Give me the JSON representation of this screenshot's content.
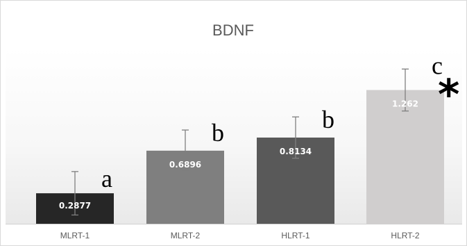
{
  "chart_data": {
    "type": "bar",
    "title": "BDNF",
    "xlabel": "",
    "ylabel": "",
    "ylim": [
      0,
      1.6
    ],
    "grid": false,
    "categories": [
      "MLRT-1",
      "MLRT-2",
      "HLRT-1",
      "HLRT-2"
    ],
    "values": [
      0.2877,
      0.6896,
      0.8134,
      1.262
    ],
    "value_labels": [
      "0.2877",
      "0.6896",
      "0.8134",
      "1.262"
    ],
    "error": [
      0.205,
      0.195,
      0.195,
      0.198
    ],
    "significance_letters": [
      "a",
      "b",
      "b",
      "c"
    ],
    "significance_star": [
      "",
      "",
      "",
      "*"
    ],
    "colors": [
      "#262626",
      "#7f7f7f",
      "#595959",
      "#d0cece"
    ],
    "label_colors": [
      "#ffffff",
      "#ffffff",
      "#ffffff",
      "#ffffff"
    ]
  }
}
